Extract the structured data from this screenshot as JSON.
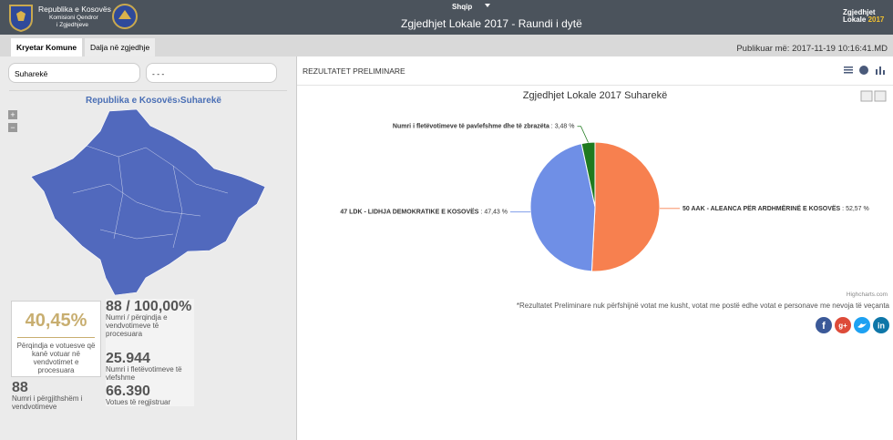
{
  "header": {
    "org": [
      "Republika e Kosovës",
      "Komisioni Qendror",
      "i Zgjedhjeve"
    ],
    "language": "Shqip",
    "title": "Zgjedhjet Lokale 2017 - Raundi i dytë",
    "logo": [
      "Zgjedhjet",
      "Lokale",
      "2017"
    ]
  },
  "tabs": [
    "Kryetar Komune",
    "Dalja në zgjedhje"
  ],
  "published": "Publikuar më: 2017-11-19 10:16:41.MD",
  "filters": [
    "Suharekë",
    "- - -"
  ],
  "breadcrumb": "Republika e Kosovës›Suharekë",
  "map_zoom": [
    "+",
    "−"
  ],
  "stats": [
    {
      "value": "40,45%",
      "label": "Përqindja e votuesve që kanë votuar në vendvotimet e procesuara"
    },
    {
      "value": "88 / 100,00%",
      "label": "Numri / përqindja e vendvotimeve të procesuara"
    },
    {
      "value": "25.944",
      "label": "Numri i fletëvotimeve të vlefshme"
    },
    {
      "value": "88",
      "label": "Numri i përgjithshëm i vendvotimeve"
    },
    {
      "value": "66.390",
      "label": "Votues të regjistruar"
    }
  ],
  "results_heading": "REZULTATET PRELIMINARE",
  "chart_data": {
    "type": "pie",
    "title": "Zgjedhjet Lokale 2017 Suharekë",
    "categories": [
      "50 AAK - ALEANCA PËR ARDHMËRINË E KOSOVËS",
      "47 LDK - LIDHJA DEMOKRATIKE E KOSOVËS",
      "Numri i fletëvotimeve të pavlefshme dhe të zbrazëta"
    ],
    "values": [
      52.57,
      47.43,
      3.48
    ],
    "value_labels": [
      "52,57 %",
      "47,43 %",
      "3,48 %"
    ],
    "label_separator": " : ",
    "colors": [
      "#f7804f",
      "#6f8fe6",
      "#1f7a1f"
    ]
  },
  "credits": "Highcharts.com",
  "footnote": "*Rezultatet Preliminare nuk përfshijnë votat me kusht, votat me postë edhe votat e personave me nevoja të veçanta",
  "social": [
    "f",
    "g+",
    "in"
  ]
}
